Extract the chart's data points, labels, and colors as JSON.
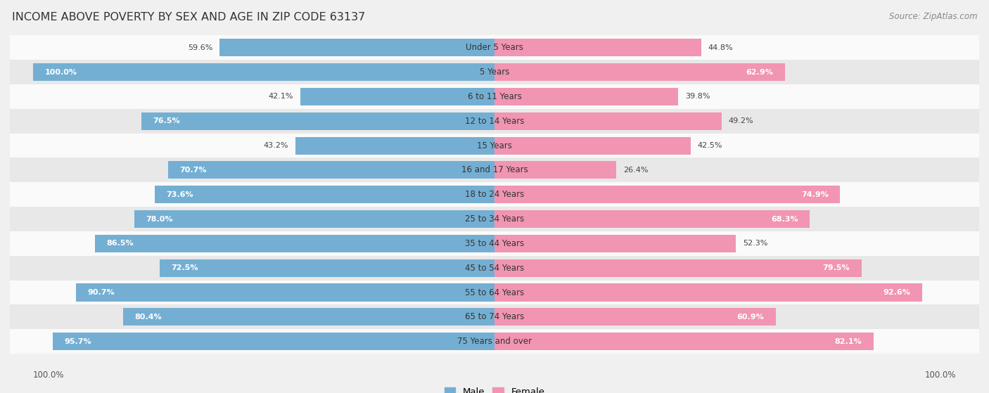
{
  "title": "INCOME ABOVE POVERTY BY SEX AND AGE IN ZIP CODE 63137",
  "source": "Source: ZipAtlas.com",
  "categories": [
    "Under 5 Years",
    "5 Years",
    "6 to 11 Years",
    "12 to 14 Years",
    "15 Years",
    "16 and 17 Years",
    "18 to 24 Years",
    "25 to 34 Years",
    "35 to 44 Years",
    "45 to 54 Years",
    "55 to 64 Years",
    "65 to 74 Years",
    "75 Years and over"
  ],
  "male_values": [
    59.6,
    100.0,
    42.1,
    76.5,
    43.2,
    70.7,
    73.6,
    78.0,
    86.5,
    72.5,
    90.7,
    80.4,
    95.7
  ],
  "female_values": [
    44.8,
    62.9,
    39.8,
    49.2,
    42.5,
    26.4,
    74.9,
    68.3,
    52.3,
    79.5,
    92.6,
    60.9,
    82.1
  ],
  "male_color": "#74afd3",
  "female_color": "#f195b2",
  "male_label": "Male",
  "female_label": "Female",
  "background_color": "#f0f0f0",
  "row_color_light": "#fafafa",
  "row_color_dark": "#e8e8e8",
  "max_value": 100.0,
  "title_fontsize": 11.5,
  "label_fontsize": 8.5,
  "bar_label_fontsize": 8.0,
  "legend_fontsize": 9.5,
  "source_fontsize": 8.5,
  "footer_label": "100.0%"
}
